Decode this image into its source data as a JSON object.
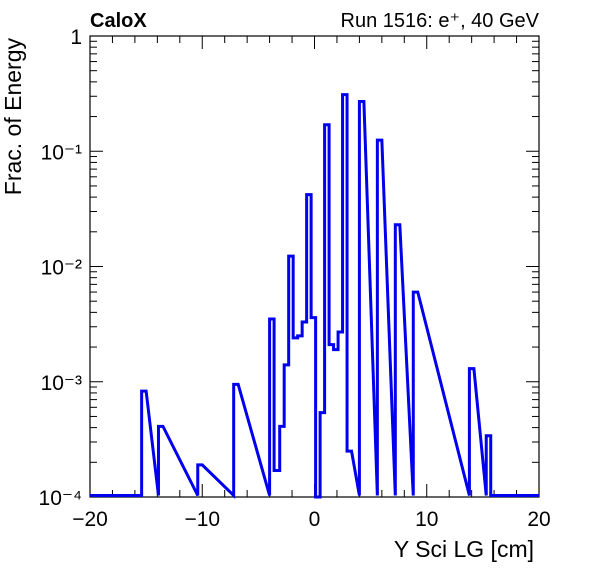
{
  "chart_data": {
    "type": "histogram",
    "title_left": "CaloX",
    "title_right": "Run 1516: e⁺, 40 GeV",
    "xlabel": "Y Sci LG [cm]",
    "ylabel": "Frac. of Energy",
    "xlim": [
      -20,
      20
    ],
    "ylim": [
      0.0001,
      1
    ],
    "yscale": "log",
    "x_ticks": [
      -20,
      -10,
      0,
      10,
      20
    ],
    "x_tick_labels": [
      "−20",
      "−10",
      "0",
      "10",
      "20"
    ],
    "y_ticks": [
      0.0001,
      0.001,
      0.01,
      0.1,
      1
    ],
    "y_tick_labels": [
      "10⁻⁴",
      "10⁻³",
      "10⁻²",
      "10⁻¹",
      "1"
    ],
    "line_color": "#0000ee",
    "bins": [
      {
        "x0": -15.4,
        "x1": -15.0,
        "y": 0.00083
      },
      {
        "x0": -13.9,
        "x1": -13.5,
        "y": 0.00041
      },
      {
        "x0": -10.4,
        "x1": -10.0,
        "y": 0.00019
      },
      {
        "x0": -7.2,
        "x1": -6.8,
        "y": 0.00095
      },
      {
        "x0": -4.0,
        "x1": -3.6,
        "y": 0.0035
      },
      {
        "x0": -3.6,
        "x1": -3.1,
        "y": 0.00017
      },
      {
        "x0": -3.1,
        "x1": -2.7,
        "y": 0.00041
      },
      {
        "x0": -2.7,
        "x1": -2.3,
        "y": 0.0014
      },
      {
        "x0": -2.3,
        "x1": -1.9,
        "y": 0.0123
      },
      {
        "x0": -1.9,
        "x1": -1.5,
        "y": 0.0024
      },
      {
        "x0": -1.5,
        "x1": -1.1,
        "y": 0.0025
      },
      {
        "x0": -1.1,
        "x1": -0.7,
        "y": 0.0033
      },
      {
        "x0": -0.7,
        "x1": -0.3,
        "y": 0.042
      },
      {
        "x0": -0.3,
        "x1": 0.1,
        "y": 0.0036
      },
      {
        "x0": 0.1,
        "x1": 0.5,
        "y": 0.0001
      },
      {
        "x0": 0.5,
        "x1": 0.9,
        "y": 0.00054
      },
      {
        "x0": 0.9,
        "x1": 1.3,
        "y": 0.17
      },
      {
        "x0": 1.3,
        "x1": 1.7,
        "y": 0.0021
      },
      {
        "x0": 1.7,
        "x1": 2.1,
        "y": 0.0019
      },
      {
        "x0": 2.1,
        "x1": 2.5,
        "y": 0.0027
      },
      {
        "x0": 2.5,
        "x1": 2.9,
        "y": 0.31
      },
      {
        "x0": 2.9,
        "x1": 3.3,
        "y": 0.00025
      },
      {
        "x0": 4.0,
        "x1": 4.4,
        "y": 0.27
      },
      {
        "x0": 5.6,
        "x1": 6.0,
        "y": 0.125
      },
      {
        "x0": 7.2,
        "x1": 7.6,
        "y": 0.023
      },
      {
        "x0": 8.8,
        "x1": 9.2,
        "y": 0.006
      },
      {
        "x0": 13.8,
        "x1": 14.2,
        "y": 0.0013
      },
      {
        "x0": 15.3,
        "x1": 15.7,
        "y": 0.00034
      }
    ]
  }
}
